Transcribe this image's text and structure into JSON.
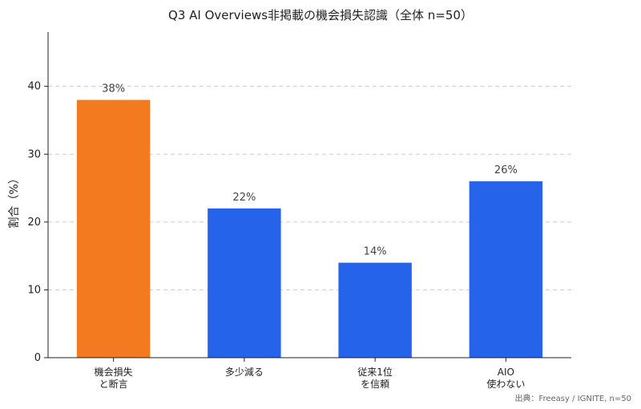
{
  "chart_data": {
    "type": "bar",
    "title": "Q3 AI Overviews非掲載の機会損失認識（全体 n=50）",
    "xlabel": "",
    "ylabel": "割合（%）",
    "ylim": [
      0,
      48
    ],
    "yticks": [
      0,
      10,
      20,
      30,
      40
    ],
    "grid": true,
    "categories": [
      [
        "機会損失",
        "と断言"
      ],
      [
        "多少減る"
      ],
      [
        "従来1位",
        "を信頼"
      ],
      [
        "AIO",
        "使わない"
      ]
    ],
    "values": [
      38,
      22,
      14,
      26
    ],
    "value_labels": [
      "38%",
      "22%",
      "14%",
      "26%"
    ],
    "bar_colors": [
      "#F47A1F",
      "#2563EB",
      "#2563EB",
      "#2563EB"
    ],
    "source": "出典：Freeasy / IGNITE, n=50"
  }
}
